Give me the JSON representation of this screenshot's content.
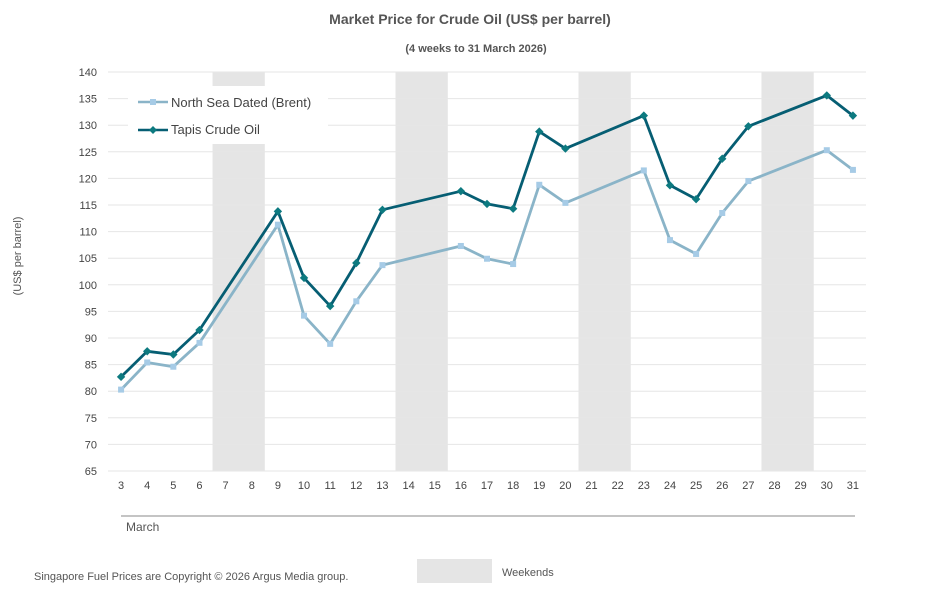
{
  "chart_data": {
    "type": "line",
    "title": "Market Price for Crude Oil (US$ per barrel)",
    "subtitle": "(4 weeks to 31 March 2026)",
    "ylabel": "(US$ per barrel)",
    "xlabel": "March",
    "ylim": [
      65,
      140
    ],
    "ystep": 5,
    "categories": [
      "3",
      "4",
      "5",
      "6",
      "7",
      "8",
      "9",
      "10",
      "11",
      "12",
      "13",
      "14",
      "15",
      "16",
      "17",
      "18",
      "19",
      "20",
      "21",
      "22",
      "23",
      "24",
      "25",
      "26",
      "27",
      "28",
      "29",
      "30",
      "31"
    ],
    "weekends": [
      [
        "7",
        "8"
      ],
      [
        "14",
        "15"
      ],
      [
        "21",
        "22"
      ],
      [
        "28",
        "29"
      ]
    ],
    "series": [
      {
        "name": "North Sea Dated (Brent)",
        "color": "#8ab4c8",
        "marker_color": "#a6cbe6",
        "marker": "square",
        "points": [
          {
            "x": "3",
            "y": 80.3
          },
          {
            "x": "4",
            "y": 85.4
          },
          {
            "x": "5",
            "y": 84.6
          },
          {
            "x": "6",
            "y": 89.1
          },
          {
            "x": "9",
            "y": 111.3
          },
          {
            "x": "10",
            "y": 94.2
          },
          {
            "x": "11",
            "y": 88.9
          },
          {
            "x": "12",
            "y": 96.9
          },
          {
            "x": "13",
            "y": 103.7
          },
          {
            "x": "16",
            "y": 107.3
          },
          {
            "x": "17",
            "y": 104.9
          },
          {
            "x": "18",
            "y": 103.9
          },
          {
            "x": "19",
            "y": 118.8
          },
          {
            "x": "20",
            "y": 115.4
          },
          {
            "x": "23",
            "y": 121.5
          },
          {
            "x": "24",
            "y": 108.4
          },
          {
            "x": "25",
            "y": 105.8
          },
          {
            "x": "26",
            "y": 113.5
          },
          {
            "x": "27",
            "y": 119.5
          },
          {
            "x": "30",
            "y": 125.3
          },
          {
            "x": "31",
            "y": 121.6
          }
        ]
      },
      {
        "name": "Tapis Crude Oil",
        "color": "#065e73",
        "marker_color": "#0d7a80",
        "marker": "diamond",
        "points": [
          {
            "x": "3",
            "y": 82.7
          },
          {
            "x": "4",
            "y": 87.5
          },
          {
            "x": "5",
            "y": 86.9
          },
          {
            "x": "6",
            "y": 91.5
          },
          {
            "x": "9",
            "y": 113.8
          },
          {
            "x": "10",
            "y": 101.3
          },
          {
            "x": "11",
            "y": 96.0
          },
          {
            "x": "12",
            "y": 104.1
          },
          {
            "x": "13",
            "y": 114.1
          },
          {
            "x": "16",
            "y": 117.6
          },
          {
            "x": "17",
            "y": 115.2
          },
          {
            "x": "18",
            "y": 114.3
          },
          {
            "x": "19",
            "y": 128.8
          },
          {
            "x": "20",
            "y": 125.6
          },
          {
            "x": "23",
            "y": 131.8
          },
          {
            "x": "24",
            "y": 118.7
          },
          {
            "x": "25",
            "y": 116.1
          },
          {
            "x": "26",
            "y": 123.7
          },
          {
            "x": "27",
            "y": 129.8
          },
          {
            "x": "30",
            "y": 135.6
          },
          {
            "x": "31",
            "y": 131.8
          }
        ]
      }
    ],
    "legend": "top-left",
    "weekend_legend": "Weekends",
    "weekend_color": "#e5e5e5",
    "grid": true,
    "grid_color": "#e6e6e6"
  },
  "footer": {
    "copyright": "Singapore Fuel Prices are Copyright © 2026 Argus Media group."
  }
}
